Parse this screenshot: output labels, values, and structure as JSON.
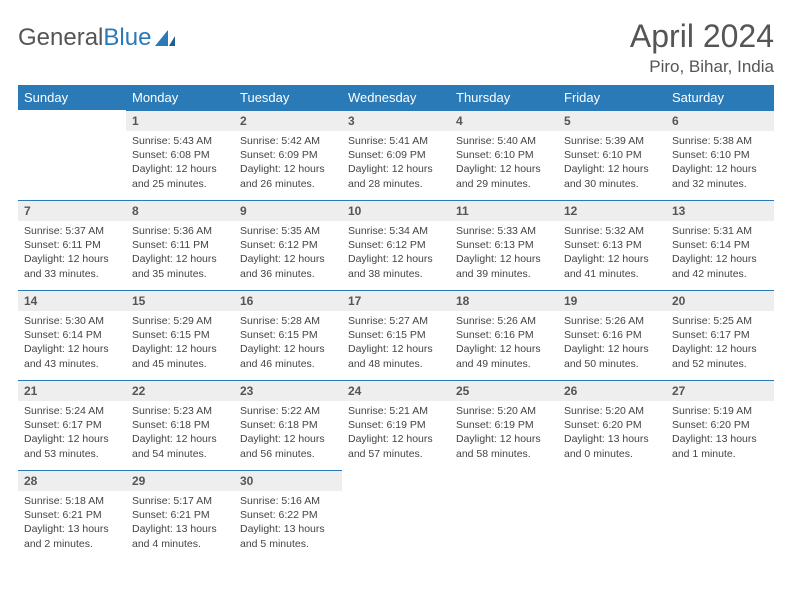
{
  "logo": {
    "word1": "General",
    "word2": "Blue",
    "text_color": "#555555",
    "accent_color": "#2a7ab8"
  },
  "title": "April 2024",
  "location": "Piro, Bihar, India",
  "colors": {
    "header_bg": "#2a7ab8",
    "header_text": "#ffffff",
    "daynum_bg": "#eeeeee",
    "row_divider": "#2a7ab8",
    "body_text": "#444444",
    "page_bg": "#ffffff"
  },
  "typography": {
    "title_fontsize": 32,
    "location_fontsize": 17,
    "weekday_fontsize": 13,
    "daynum_fontsize": 12,
    "cell_fontsize": 10.5
  },
  "layout": {
    "columns": 7,
    "rows": 5
  },
  "weekdays": [
    "Sunday",
    "Monday",
    "Tuesday",
    "Wednesday",
    "Thursday",
    "Friday",
    "Saturday"
  ],
  "days": [
    {
      "n": "",
      "sunrise": "",
      "sunset": "",
      "daylight": ""
    },
    {
      "n": "1",
      "sunrise": "Sunrise: 5:43 AM",
      "sunset": "Sunset: 6:08 PM",
      "daylight": "Daylight: 12 hours and 25 minutes."
    },
    {
      "n": "2",
      "sunrise": "Sunrise: 5:42 AM",
      "sunset": "Sunset: 6:09 PM",
      "daylight": "Daylight: 12 hours and 26 minutes."
    },
    {
      "n": "3",
      "sunrise": "Sunrise: 5:41 AM",
      "sunset": "Sunset: 6:09 PM",
      "daylight": "Daylight: 12 hours and 28 minutes."
    },
    {
      "n": "4",
      "sunrise": "Sunrise: 5:40 AM",
      "sunset": "Sunset: 6:10 PM",
      "daylight": "Daylight: 12 hours and 29 minutes."
    },
    {
      "n": "5",
      "sunrise": "Sunrise: 5:39 AM",
      "sunset": "Sunset: 6:10 PM",
      "daylight": "Daylight: 12 hours and 30 minutes."
    },
    {
      "n": "6",
      "sunrise": "Sunrise: 5:38 AM",
      "sunset": "Sunset: 6:10 PM",
      "daylight": "Daylight: 12 hours and 32 minutes."
    },
    {
      "n": "7",
      "sunrise": "Sunrise: 5:37 AM",
      "sunset": "Sunset: 6:11 PM",
      "daylight": "Daylight: 12 hours and 33 minutes."
    },
    {
      "n": "8",
      "sunrise": "Sunrise: 5:36 AM",
      "sunset": "Sunset: 6:11 PM",
      "daylight": "Daylight: 12 hours and 35 minutes."
    },
    {
      "n": "9",
      "sunrise": "Sunrise: 5:35 AM",
      "sunset": "Sunset: 6:12 PM",
      "daylight": "Daylight: 12 hours and 36 minutes."
    },
    {
      "n": "10",
      "sunrise": "Sunrise: 5:34 AM",
      "sunset": "Sunset: 6:12 PM",
      "daylight": "Daylight: 12 hours and 38 minutes."
    },
    {
      "n": "11",
      "sunrise": "Sunrise: 5:33 AM",
      "sunset": "Sunset: 6:13 PM",
      "daylight": "Daylight: 12 hours and 39 minutes."
    },
    {
      "n": "12",
      "sunrise": "Sunrise: 5:32 AM",
      "sunset": "Sunset: 6:13 PM",
      "daylight": "Daylight: 12 hours and 41 minutes."
    },
    {
      "n": "13",
      "sunrise": "Sunrise: 5:31 AM",
      "sunset": "Sunset: 6:14 PM",
      "daylight": "Daylight: 12 hours and 42 minutes."
    },
    {
      "n": "14",
      "sunrise": "Sunrise: 5:30 AM",
      "sunset": "Sunset: 6:14 PM",
      "daylight": "Daylight: 12 hours and 43 minutes."
    },
    {
      "n": "15",
      "sunrise": "Sunrise: 5:29 AM",
      "sunset": "Sunset: 6:15 PM",
      "daylight": "Daylight: 12 hours and 45 minutes."
    },
    {
      "n": "16",
      "sunrise": "Sunrise: 5:28 AM",
      "sunset": "Sunset: 6:15 PM",
      "daylight": "Daylight: 12 hours and 46 minutes."
    },
    {
      "n": "17",
      "sunrise": "Sunrise: 5:27 AM",
      "sunset": "Sunset: 6:15 PM",
      "daylight": "Daylight: 12 hours and 48 minutes."
    },
    {
      "n": "18",
      "sunrise": "Sunrise: 5:26 AM",
      "sunset": "Sunset: 6:16 PM",
      "daylight": "Daylight: 12 hours and 49 minutes."
    },
    {
      "n": "19",
      "sunrise": "Sunrise: 5:26 AM",
      "sunset": "Sunset: 6:16 PM",
      "daylight": "Daylight: 12 hours and 50 minutes."
    },
    {
      "n": "20",
      "sunrise": "Sunrise: 5:25 AM",
      "sunset": "Sunset: 6:17 PM",
      "daylight": "Daylight: 12 hours and 52 minutes."
    },
    {
      "n": "21",
      "sunrise": "Sunrise: 5:24 AM",
      "sunset": "Sunset: 6:17 PM",
      "daylight": "Daylight: 12 hours and 53 minutes."
    },
    {
      "n": "22",
      "sunrise": "Sunrise: 5:23 AM",
      "sunset": "Sunset: 6:18 PM",
      "daylight": "Daylight: 12 hours and 54 minutes."
    },
    {
      "n": "23",
      "sunrise": "Sunrise: 5:22 AM",
      "sunset": "Sunset: 6:18 PM",
      "daylight": "Daylight: 12 hours and 56 minutes."
    },
    {
      "n": "24",
      "sunrise": "Sunrise: 5:21 AM",
      "sunset": "Sunset: 6:19 PM",
      "daylight": "Daylight: 12 hours and 57 minutes."
    },
    {
      "n": "25",
      "sunrise": "Sunrise: 5:20 AM",
      "sunset": "Sunset: 6:19 PM",
      "daylight": "Daylight: 12 hours and 58 minutes."
    },
    {
      "n": "26",
      "sunrise": "Sunrise: 5:20 AM",
      "sunset": "Sunset: 6:20 PM",
      "daylight": "Daylight: 13 hours and 0 minutes."
    },
    {
      "n": "27",
      "sunrise": "Sunrise: 5:19 AM",
      "sunset": "Sunset: 6:20 PM",
      "daylight": "Daylight: 13 hours and 1 minute."
    },
    {
      "n": "28",
      "sunrise": "Sunrise: 5:18 AM",
      "sunset": "Sunset: 6:21 PM",
      "daylight": "Daylight: 13 hours and 2 minutes."
    },
    {
      "n": "29",
      "sunrise": "Sunrise: 5:17 AM",
      "sunset": "Sunset: 6:21 PM",
      "daylight": "Daylight: 13 hours and 4 minutes."
    },
    {
      "n": "30",
      "sunrise": "Sunrise: 5:16 AM",
      "sunset": "Sunset: 6:22 PM",
      "daylight": "Daylight: 13 hours and 5 minutes."
    },
    {
      "n": "",
      "sunrise": "",
      "sunset": "",
      "daylight": ""
    },
    {
      "n": "",
      "sunrise": "",
      "sunset": "",
      "daylight": ""
    },
    {
      "n": "",
      "sunrise": "",
      "sunset": "",
      "daylight": ""
    },
    {
      "n": "",
      "sunrise": "",
      "sunset": "",
      "daylight": ""
    }
  ]
}
